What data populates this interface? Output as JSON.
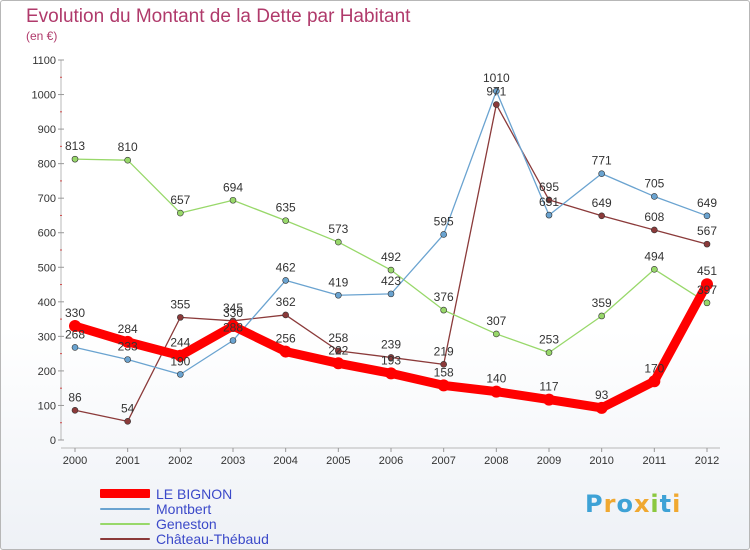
{
  "title": "Evolution du Montant de la Dette par Habitant",
  "unit_label": "(en €)",
  "logo_text": "Proxiti",
  "chart_data": {
    "type": "line",
    "categories": [
      "2000",
      "2001",
      "2002",
      "2003",
      "2004",
      "2005",
      "2006",
      "2007",
      "2008",
      "2009",
      "2010",
      "2011",
      "2012"
    ],
    "ylim": [
      0,
      1100
    ],
    "yticks": [
      0,
      100,
      200,
      300,
      400,
      500,
      600,
      700,
      800,
      900,
      1000,
      1100
    ],
    "grid": false,
    "legend_position": "bottom-left",
    "series": [
      {
        "name": "LE BIGNON",
        "color": "#ff0000",
        "values": [
          330,
          284,
          244,
          330,
          256,
          222,
          193,
          158,
          140,
          117,
          93,
          170,
          451
        ],
        "labels": [
          "330",
          "284",
          "244",
          "330",
          "256",
          "222",
          "193",
          "158",
          "140",
          "117",
          "93",
          "170",
          "451"
        ]
      },
      {
        "name": "Montbert",
        "color": "#6aa3d0",
        "values": [
          268,
          233,
          190,
          288,
          462,
          419,
          423,
          595,
          1010,
          651,
          771,
          705,
          649
        ],
        "labels": [
          "268",
          "233",
          "190",
          "288",
          "462",
          "419",
          "423",
          "595",
          "1010",
          "651",
          "771",
          "705",
          "649"
        ]
      },
      {
        "name": "Geneston",
        "color": "#98d86a",
        "values": [
          813,
          810,
          657,
          694,
          635,
          573,
          492,
          376,
          307,
          253,
          359,
          494,
          397
        ],
        "labels": [
          "813",
          "810",
          "657",
          "694",
          "635",
          "573",
          "492",
          "376",
          "307",
          "253",
          "359",
          "494",
          "397"
        ]
      },
      {
        "name": "Château-Thébaud",
        "color": "#8b3a3a",
        "values": [
          86,
          54,
          355,
          345,
          362,
          258,
          239,
          219,
          971,
          695,
          649,
          608,
          567
        ],
        "labels": [
          "86",
          "54",
          "355",
          "345",
          "362",
          "258",
          "239",
          "219",
          "971",
          "695",
          "649",
          "608",
          "567"
        ]
      }
    ]
  }
}
